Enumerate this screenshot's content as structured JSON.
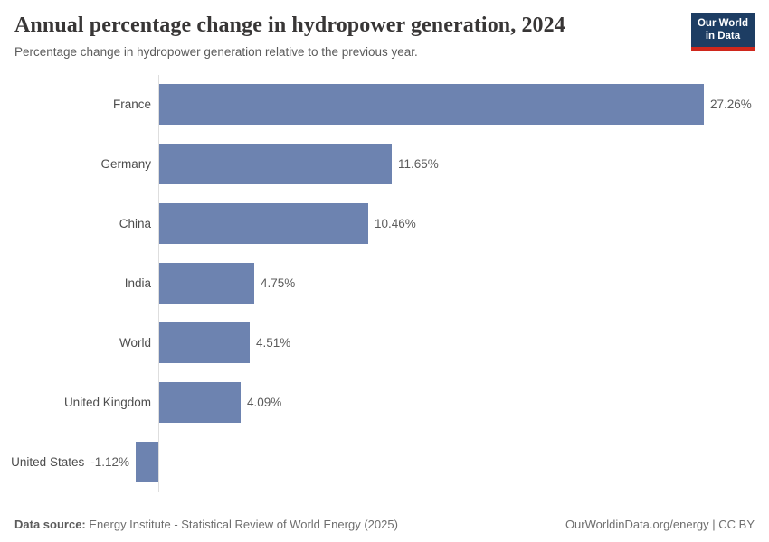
{
  "header": {
    "title": "Annual percentage change in hydropower generation, 2024",
    "subtitle": "Percentage change in hydropower generation relative to the previous year.",
    "logo": {
      "line1": "Our World",
      "line2": "in Data",
      "bg_color": "#1d3d63",
      "accent_color": "#cf271c"
    }
  },
  "chart_data": {
    "type": "bar",
    "orientation": "horizontal",
    "title": "Annual percentage change in hydropower generation, 2024",
    "subtitle": "Percentage change in hydropower generation relative to the previous year.",
    "categories": [
      "France",
      "Germany",
      "China",
      "India",
      "World",
      "United Kingdom",
      "United States"
    ],
    "values": [
      27.26,
      11.65,
      10.46,
      4.75,
      4.51,
      4.09,
      -1.12
    ],
    "value_labels": [
      "27.26%",
      "11.65%",
      "10.46%",
      "4.75%",
      "4.51%",
      "4.09%",
      "-1.12%"
    ],
    "xlabel": "",
    "ylabel": "",
    "xlim": [
      -1.12,
      27.26
    ],
    "grid": false,
    "legend": false,
    "bar_color": "#6d83b0",
    "axis_color": "#dedede"
  },
  "footer": {
    "datasource_label": "Data source:",
    "datasource_text": "Energy Institute - Statistical Review of World Energy (2025)",
    "license_text": "OurWorldinData.org/energy | CC BY"
  }
}
